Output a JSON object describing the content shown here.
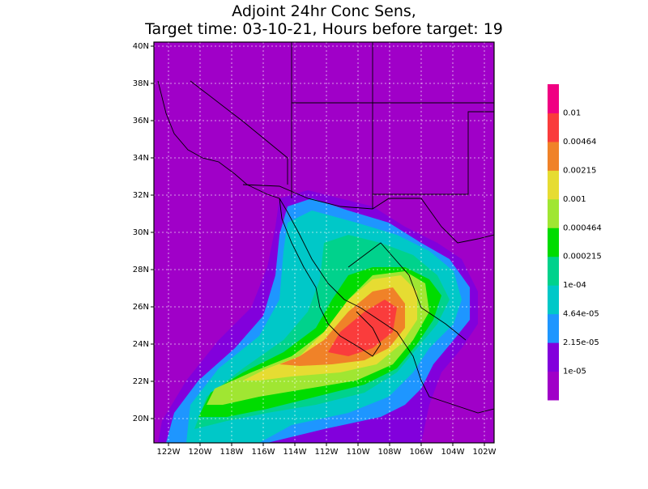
{
  "title": [
    "Adjoint 24hr Conc Sens,",
    "Target time: 03-10-21, Hours before target: 19"
  ],
  "map": {
    "lat_labels": [
      "40N",
      "38N",
      "36N",
      "34N",
      "32N",
      "30N",
      "28N",
      "26N",
      "24N",
      "22N",
      "20N"
    ],
    "lon_labels": [
      "122W",
      "120W",
      "118W",
      "116W",
      "114W",
      "112W",
      "110W",
      "108W",
      "106W",
      "104W",
      "102W"
    ]
  },
  "colorbar": {
    "labels": [
      "1e-05",
      "2.15e-05",
      "4.64e-05",
      "1e-04",
      "0.000215",
      "0.000464",
      "0.001",
      "0.00215",
      "0.00464",
      "0.01"
    ],
    "colors": [
      "#a000c8",
      "#8200dc",
      "#1e96ff",
      "#00c8c8",
      "#00d28c",
      "#00dc00",
      "#a0e632",
      "#e6dc32",
      "#f08228",
      "#fa3c3c",
      "#f00082"
    ]
  }
}
